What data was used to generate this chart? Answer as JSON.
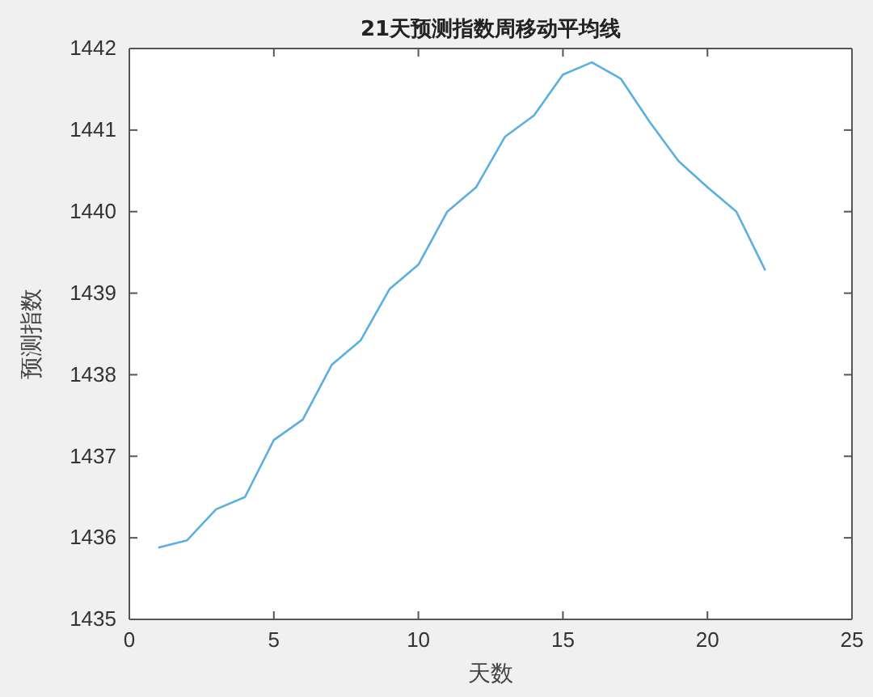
{
  "chart_data": {
    "type": "line",
    "title": "21天预测指数周移动平均线",
    "xlabel": "天数",
    "ylabel": "预测指数",
    "x": [
      1,
      2,
      3,
      4,
      5,
      6,
      7,
      8,
      9,
      10,
      11,
      12,
      13,
      14,
      15,
      16,
      17,
      18,
      19,
      20,
      21,
      22
    ],
    "series": [
      {
        "color": "#5aafe0",
        "values": [
          1435.88,
          1435.97,
          1436.35,
          1436.5,
          1437.2,
          1437.45,
          1438.12,
          1438.42,
          1439.05,
          1439.35,
          1440.0,
          1440.3,
          1440.92,
          1441.18,
          1441.68,
          1441.83,
          1441.63,
          1441.1,
          1440.62,
          1440.3,
          1440.0,
          1439.28
        ]
      }
    ],
    "xlim": [
      0,
      25
    ],
    "xticks": [
      0,
      5,
      10,
      15,
      20,
      25
    ],
    "ylim": [
      1435,
      1442
    ],
    "yticks": [
      1435,
      1436,
      1437,
      1438,
      1439,
      1440,
      1441,
      1442
    ],
    "grid": false,
    "marker": "none",
    "line_style": "solid"
  }
}
